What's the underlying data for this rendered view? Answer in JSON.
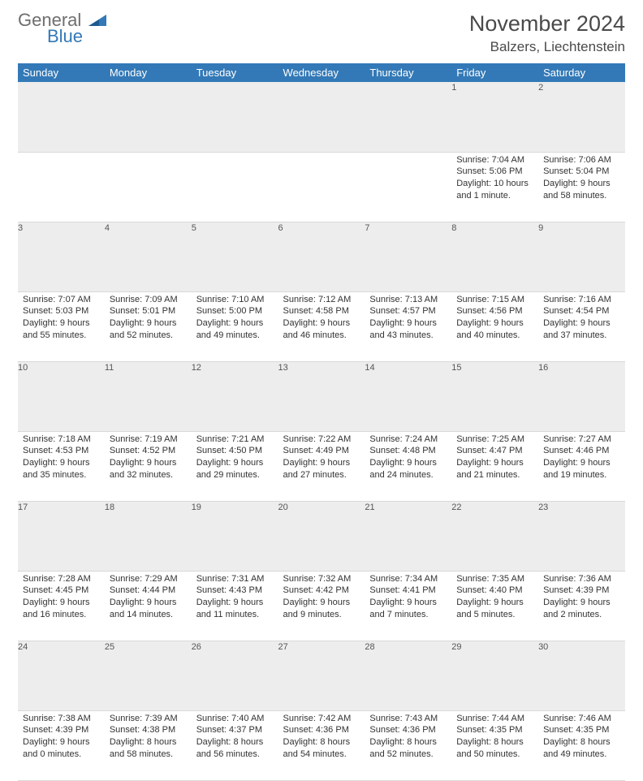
{
  "brand": {
    "name": "General",
    "sub": "Blue"
  },
  "colors": {
    "accent": "#3379b7",
    "header_bg": "#3379b7",
    "header_text": "#ffffff",
    "daynum_bg": "#ededed",
    "daynum_text": "#555555",
    "body_text": "#333333",
    "page_bg": "#ffffff",
    "rule": "#d9d9d9",
    "logo_text": "#6e6e6e"
  },
  "title": "November 2024",
  "location": "Balzers, Liechtenstein",
  "weekdays": [
    "Sunday",
    "Monday",
    "Tuesday",
    "Wednesday",
    "Thursday",
    "Friday",
    "Saturday"
  ],
  "weeks": [
    [
      {
        "n": "",
        "sunrise": "",
        "sunset": "",
        "daylight": ""
      },
      {
        "n": "",
        "sunrise": "",
        "sunset": "",
        "daylight": ""
      },
      {
        "n": "",
        "sunrise": "",
        "sunset": "",
        "daylight": ""
      },
      {
        "n": "",
        "sunrise": "",
        "sunset": "",
        "daylight": ""
      },
      {
        "n": "",
        "sunrise": "",
        "sunset": "",
        "daylight": ""
      },
      {
        "n": "1",
        "sunrise": "Sunrise: 7:04 AM",
        "sunset": "Sunset: 5:06 PM",
        "daylight": "Daylight: 10 hours and 1 minute."
      },
      {
        "n": "2",
        "sunrise": "Sunrise: 7:06 AM",
        "sunset": "Sunset: 5:04 PM",
        "daylight": "Daylight: 9 hours and 58 minutes."
      }
    ],
    [
      {
        "n": "3",
        "sunrise": "Sunrise: 7:07 AM",
        "sunset": "Sunset: 5:03 PM",
        "daylight": "Daylight: 9 hours and 55 minutes."
      },
      {
        "n": "4",
        "sunrise": "Sunrise: 7:09 AM",
        "sunset": "Sunset: 5:01 PM",
        "daylight": "Daylight: 9 hours and 52 minutes."
      },
      {
        "n": "5",
        "sunrise": "Sunrise: 7:10 AM",
        "sunset": "Sunset: 5:00 PM",
        "daylight": "Daylight: 9 hours and 49 minutes."
      },
      {
        "n": "6",
        "sunrise": "Sunrise: 7:12 AM",
        "sunset": "Sunset: 4:58 PM",
        "daylight": "Daylight: 9 hours and 46 minutes."
      },
      {
        "n": "7",
        "sunrise": "Sunrise: 7:13 AM",
        "sunset": "Sunset: 4:57 PM",
        "daylight": "Daylight: 9 hours and 43 minutes."
      },
      {
        "n": "8",
        "sunrise": "Sunrise: 7:15 AM",
        "sunset": "Sunset: 4:56 PM",
        "daylight": "Daylight: 9 hours and 40 minutes."
      },
      {
        "n": "9",
        "sunrise": "Sunrise: 7:16 AM",
        "sunset": "Sunset: 4:54 PM",
        "daylight": "Daylight: 9 hours and 37 minutes."
      }
    ],
    [
      {
        "n": "10",
        "sunrise": "Sunrise: 7:18 AM",
        "sunset": "Sunset: 4:53 PM",
        "daylight": "Daylight: 9 hours and 35 minutes."
      },
      {
        "n": "11",
        "sunrise": "Sunrise: 7:19 AM",
        "sunset": "Sunset: 4:52 PM",
        "daylight": "Daylight: 9 hours and 32 minutes."
      },
      {
        "n": "12",
        "sunrise": "Sunrise: 7:21 AM",
        "sunset": "Sunset: 4:50 PM",
        "daylight": "Daylight: 9 hours and 29 minutes."
      },
      {
        "n": "13",
        "sunrise": "Sunrise: 7:22 AM",
        "sunset": "Sunset: 4:49 PM",
        "daylight": "Daylight: 9 hours and 27 minutes."
      },
      {
        "n": "14",
        "sunrise": "Sunrise: 7:24 AM",
        "sunset": "Sunset: 4:48 PM",
        "daylight": "Daylight: 9 hours and 24 minutes."
      },
      {
        "n": "15",
        "sunrise": "Sunrise: 7:25 AM",
        "sunset": "Sunset: 4:47 PM",
        "daylight": "Daylight: 9 hours and 21 minutes."
      },
      {
        "n": "16",
        "sunrise": "Sunrise: 7:27 AM",
        "sunset": "Sunset: 4:46 PM",
        "daylight": "Daylight: 9 hours and 19 minutes."
      }
    ],
    [
      {
        "n": "17",
        "sunrise": "Sunrise: 7:28 AM",
        "sunset": "Sunset: 4:45 PM",
        "daylight": "Daylight: 9 hours and 16 minutes."
      },
      {
        "n": "18",
        "sunrise": "Sunrise: 7:29 AM",
        "sunset": "Sunset: 4:44 PM",
        "daylight": "Daylight: 9 hours and 14 minutes."
      },
      {
        "n": "19",
        "sunrise": "Sunrise: 7:31 AM",
        "sunset": "Sunset: 4:43 PM",
        "daylight": "Daylight: 9 hours and 11 minutes."
      },
      {
        "n": "20",
        "sunrise": "Sunrise: 7:32 AM",
        "sunset": "Sunset: 4:42 PM",
        "daylight": "Daylight: 9 hours and 9 minutes."
      },
      {
        "n": "21",
        "sunrise": "Sunrise: 7:34 AM",
        "sunset": "Sunset: 4:41 PM",
        "daylight": "Daylight: 9 hours and 7 minutes."
      },
      {
        "n": "22",
        "sunrise": "Sunrise: 7:35 AM",
        "sunset": "Sunset: 4:40 PM",
        "daylight": "Daylight: 9 hours and 5 minutes."
      },
      {
        "n": "23",
        "sunrise": "Sunrise: 7:36 AM",
        "sunset": "Sunset: 4:39 PM",
        "daylight": "Daylight: 9 hours and 2 minutes."
      }
    ],
    [
      {
        "n": "24",
        "sunrise": "Sunrise: 7:38 AM",
        "sunset": "Sunset: 4:39 PM",
        "daylight": "Daylight: 9 hours and 0 minutes."
      },
      {
        "n": "25",
        "sunrise": "Sunrise: 7:39 AM",
        "sunset": "Sunset: 4:38 PM",
        "daylight": "Daylight: 8 hours and 58 minutes."
      },
      {
        "n": "26",
        "sunrise": "Sunrise: 7:40 AM",
        "sunset": "Sunset: 4:37 PM",
        "daylight": "Daylight: 8 hours and 56 minutes."
      },
      {
        "n": "27",
        "sunrise": "Sunrise: 7:42 AM",
        "sunset": "Sunset: 4:36 PM",
        "daylight": "Daylight: 8 hours and 54 minutes."
      },
      {
        "n": "28",
        "sunrise": "Sunrise: 7:43 AM",
        "sunset": "Sunset: 4:36 PM",
        "daylight": "Daylight: 8 hours and 52 minutes."
      },
      {
        "n": "29",
        "sunrise": "Sunrise: 7:44 AM",
        "sunset": "Sunset: 4:35 PM",
        "daylight": "Daylight: 8 hours and 50 minutes."
      },
      {
        "n": "30",
        "sunrise": "Sunrise: 7:46 AM",
        "sunset": "Sunset: 4:35 PM",
        "daylight": "Daylight: 8 hours and 49 minutes."
      }
    ]
  ]
}
